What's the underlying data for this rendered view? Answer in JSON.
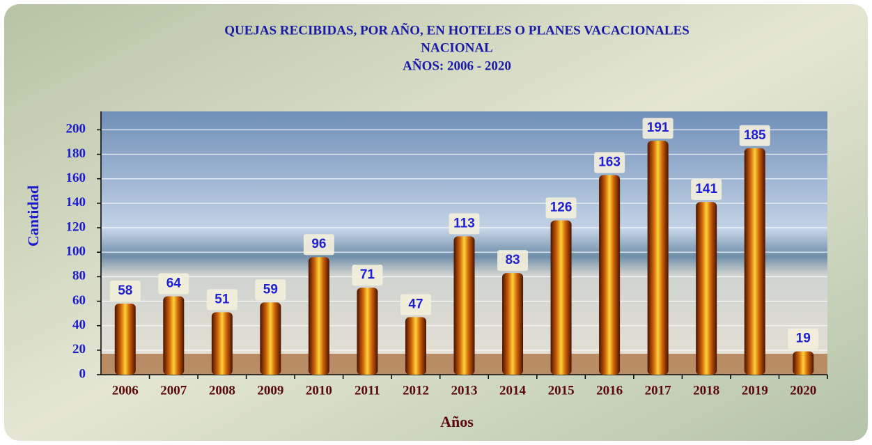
{
  "chart_data": {
    "type": "bar",
    "title": [
      "QUEJAS RECIBIDAS,  POR AÑO, EN HOTELES O PLANES VACACIONALES",
      "NACIONAL",
      "AÑOS:  2006 - 2020"
    ],
    "x_label": "Años",
    "y_label": "Cantidad",
    "categories": [
      "2006",
      "2007",
      "2008",
      "2009",
      "2010",
      "2011",
      "2012",
      "2013",
      "2014",
      "2015",
      "2016",
      "2017",
      "2018",
      "2019",
      "2020"
    ],
    "values": [
      58,
      64,
      51,
      59,
      96,
      71,
      47,
      113,
      83,
      126,
      163,
      191,
      141,
      185,
      19
    ],
    "color": "#d0650a",
    "ylim": [
      0,
      215
    ],
    "yticks": [
      0,
      20,
      40,
      60,
      80,
      100,
      120,
      140,
      160,
      180,
      200
    ],
    "grid": true
  }
}
